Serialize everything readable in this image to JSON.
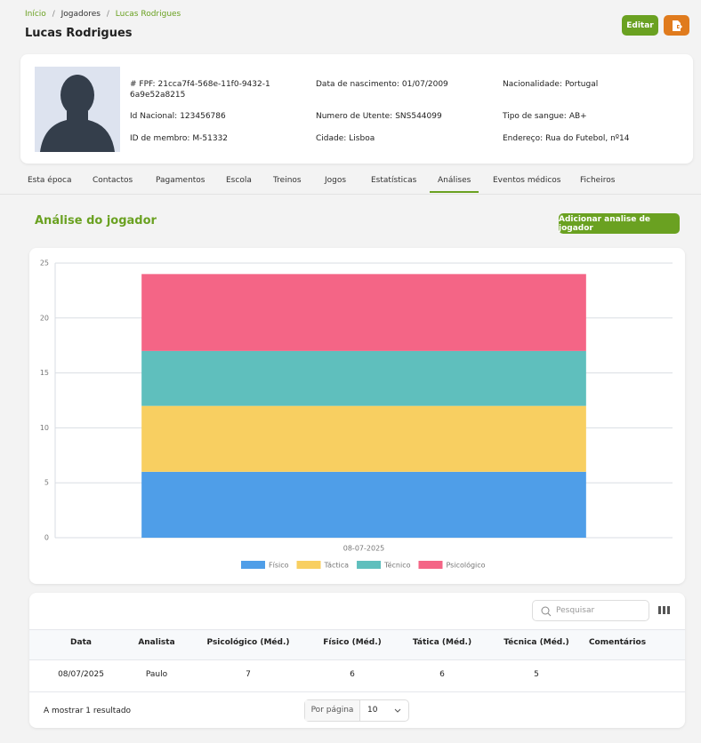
{
  "breadcrumb": [
    "Início",
    "Jogadores",
    "Lucas Rodrigues"
  ],
  "header": {
    "title": "Lucas Rodrigues",
    "edit_button": "Editar"
  },
  "profile": {
    "fields": [
      {
        "label": "# FPF:",
        "value": "21cca7f4-568e-11f0-9432-16a9e52a8215"
      },
      {
        "label": "Data de nascimento:",
        "value": "01/07/2009"
      },
      {
        "label": "Nacionalidade:",
        "value": "Portugal"
      },
      {
        "label": "Id Nacional:",
        "value": "123456786"
      },
      {
        "label": "Numero de Utente:",
        "value": "SNS544099"
      },
      {
        "label": "Tipo de sangue:",
        "value": "AB+"
      },
      {
        "label": "ID de membro:",
        "value": "M-51332"
      },
      {
        "label": "Cidade:",
        "value": "Lisboa"
      },
      {
        "label": "Endereço:",
        "value": "Rua do Futebol, nº14"
      }
    ]
  },
  "tabs": [
    "Esta época",
    "Contactos",
    "Pagamentos",
    "Escola",
    "Treinos",
    "Jogos",
    "Estatísticas",
    "Análises",
    "Eventos médicos",
    "Ficheiros"
  ],
  "section": {
    "title": "Análise do jogador",
    "button": "Adicionar analise de jogador"
  },
  "chart_data": {
    "type": "bar",
    "stacked": true,
    "categories": [
      "08-07-2025"
    ],
    "series": [
      {
        "name": "Físico",
        "color": "#4f9ee8",
        "values": [
          6
        ]
      },
      {
        "name": "Táctica",
        "color": "#f8cf61",
        "values": [
          6
        ]
      },
      {
        "name": "Técnico",
        "color": "#5fbfbd",
        "values": [
          5
        ]
      },
      {
        "name": "Psicológico",
        "color": "#f46586",
        "values": [
          7
        ]
      }
    ],
    "ylim": [
      0,
      25
    ],
    "yticks": [
      0,
      5,
      10,
      15,
      20,
      25
    ],
    "grid": true,
    "legend": "bottom"
  },
  "table": {
    "search_placeholder": "Pesquisar",
    "columns": [
      "Data",
      "Analista",
      "Psicológico (Méd.)",
      "Físico (Méd.)",
      "Tática (Méd.)",
      "Técnica (Méd.)",
      "Comentários"
    ],
    "rows": [
      [
        "08/07/2025",
        "Paulo",
        7,
        6,
        6,
        5
      ]
    ]
  },
  "footer": {
    "result": "A mostrar 1 resultado",
    "per_page_label": "Por página",
    "per_page": 10
  }
}
